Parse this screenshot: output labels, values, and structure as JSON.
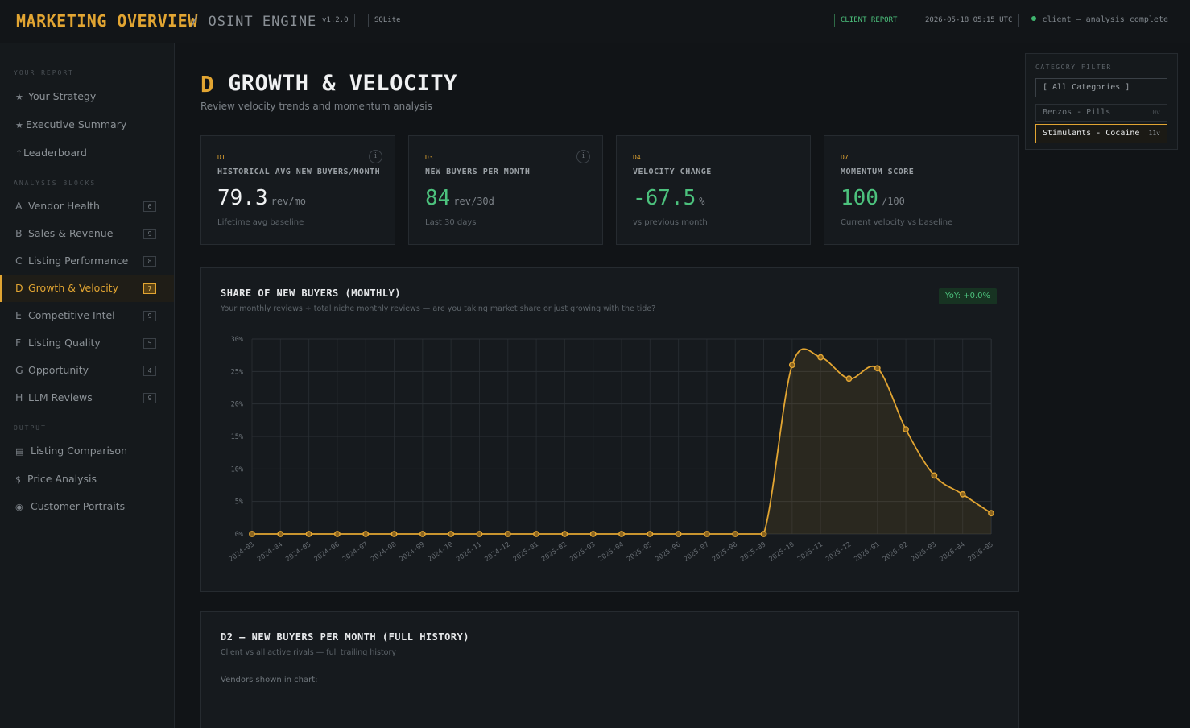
{
  "app": {
    "title": "MARKETING OVERVIEW",
    "subtitle": "/ OSINT ENGINE",
    "version": "v1.2.0",
    "db": "SQLite",
    "report_tag": "CLIENT REPORT",
    "timestamp": "2026-05-18 05:15 UTC",
    "status": "client – analysis complete"
  },
  "sidebar": {
    "section_report": "YOUR REPORT",
    "section_blocks": "ANALYSIS BLOCKS",
    "section_output": "OUTPUT",
    "report_items": [
      {
        "icon": "★",
        "label": "Your Strategy"
      },
      {
        "icon": "★",
        "label": "Executive Summary"
      },
      {
        "icon": "↑",
        "label": "Leaderboard"
      }
    ],
    "blocks": [
      {
        "letter": "A",
        "label": "Vendor Health",
        "count": "6"
      },
      {
        "letter": "B",
        "label": "Sales & Revenue",
        "count": "9"
      },
      {
        "letter": "C",
        "label": "Listing Performance",
        "count": "8"
      },
      {
        "letter": "D",
        "label": "Growth & Velocity",
        "count": "7"
      },
      {
        "letter": "E",
        "label": "Competitive Intel",
        "count": "9"
      },
      {
        "letter": "F",
        "label": "Listing Quality",
        "count": "5"
      },
      {
        "letter": "G",
        "label": "Opportunity",
        "count": "4"
      },
      {
        "letter": "H",
        "label": "LLM Reviews",
        "count": "9"
      }
    ],
    "output_items": [
      {
        "icon": "▤",
        "label": "Listing Comparison"
      },
      {
        "icon": "$",
        "label": "Price Analysis"
      },
      {
        "icon": "◉",
        "label": "Customer Portraits"
      }
    ]
  },
  "section": {
    "letter": "D",
    "title": "GROWTH & VELOCITY",
    "subtitle": "Review velocity trends and momentum analysis"
  },
  "kpis": [
    {
      "code": "D1",
      "label": "HISTORICAL AVG NEW BUYERS/MONTH",
      "value": "79.3",
      "unit": "rev/mo",
      "note": "Lifetime avg baseline",
      "info": "i"
    },
    {
      "code": "D3",
      "label": "NEW BUYERS PER MONTH",
      "value": "84",
      "unit": "rev/30d",
      "note": "Last 30 days",
      "info": "i"
    },
    {
      "code": "D4",
      "label": "VELOCITY CHANGE",
      "value": "-67.5",
      "unit": "%",
      "note": "vs previous month",
      "info": ""
    },
    {
      "code": "D7",
      "label": "MOMENTUM SCORE",
      "value": "100",
      "unit": "/100",
      "note": "Current velocity vs baseline",
      "info": ""
    }
  ],
  "share_panel": {
    "title": "SHARE OF NEW BUYERS (MONTHLY)",
    "subtitle": "Your monthly reviews ÷ total niche monthly reviews — are you taking market share or just growing with the tide?",
    "yoy": "YoY: +0.0%"
  },
  "history_panel": {
    "title": "D2 — NEW BUYERS PER MONTH (FULL HISTORY)",
    "subtitle": "Client vs all active rivals — full trailing history",
    "vendors_label": "Vendors shown in chart:"
  },
  "filter": {
    "title": "CATEGORY FILTER",
    "all": "[ All Categories ]",
    "options": [
      {
        "label": "Benzos - Pills",
        "count": "0v",
        "selected": false
      },
      {
        "label": "Stimulants - Cocaine",
        "count": "11v",
        "selected": true
      }
    ]
  },
  "colors": {
    "accent": "#e2a532",
    "positive": "#4cc27d",
    "background": "#111417",
    "panel": "#161a1e"
  },
  "chart_data": {
    "type": "area",
    "title": "SHARE OF NEW BUYERS (MONTHLY)",
    "x": [
      "2024-03",
      "2024-04",
      "2024-05",
      "2024-06",
      "2024-07",
      "2024-08",
      "2024-09",
      "2024-10",
      "2024-11",
      "2024-12",
      "2025-01",
      "2025-02",
      "2025-03",
      "2025-04",
      "2025-05",
      "2025-06",
      "2025-07",
      "2025-08",
      "2025-09",
      "2025-10",
      "2025-11",
      "2025-12",
      "2026-01",
      "2026-02",
      "2026-03",
      "2026-04",
      "2026-05"
    ],
    "series": [
      {
        "values": [
          0,
          0,
          0,
          0,
          0,
          0,
          0,
          0,
          0,
          0,
          0,
          0,
          0,
          0,
          0,
          0,
          0,
          0,
          0,
          26,
          27.2,
          23.9,
          25.5,
          16.1,
          9,
          6.1,
          3.2
        ]
      }
    ],
    "yticks": [
      "0%",
      "5%",
      "10%",
      "15%",
      "20%",
      "25%",
      "30%"
    ],
    "ylim": [
      0,
      30
    ],
    "grid": true,
    "color": "#e2a532"
  }
}
